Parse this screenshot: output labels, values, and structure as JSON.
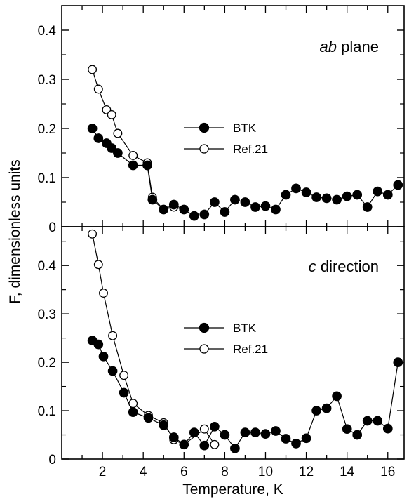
{
  "chart_data": [
    {
      "type": "scatter",
      "title_italic": "ab",
      "title_rest": "plane",
      "xlabel": "Temperature, K",
      "ylabel": "F, dimensionless units",
      "xlim": [
        0,
        16.8
      ],
      "ylim": [
        0,
        0.45
      ],
      "xticks": [
        "2",
        "4",
        "6",
        "8",
        "10",
        "12",
        "14",
        "16"
      ],
      "yticks": [
        "0",
        "0.1",
        "0.2",
        "0.3",
        "0.4"
      ],
      "legend": [
        "BTK",
        "Ref.21"
      ],
      "series": [
        {
          "name": "BTK",
          "marker": "filled-circle",
          "x": [
            1.5,
            1.8,
            2.2,
            2.45,
            2.75,
            3.5,
            4.2,
            4.45,
            5.0,
            5.5,
            6.0,
            6.5,
            7.0,
            7.5,
            8.0,
            8.5,
            9.0,
            9.5,
            10.0,
            10.5,
            11.0,
            11.5,
            12.0,
            12.5,
            13.0,
            13.5,
            14.0,
            14.5,
            15.0,
            15.5,
            16.0,
            16.5
          ],
          "y": [
            0.2,
            0.18,
            0.17,
            0.16,
            0.15,
            0.125,
            0.125,
            0.055,
            0.035,
            0.045,
            0.035,
            0.022,
            0.025,
            0.05,
            0.03,
            0.055,
            0.05,
            0.04,
            0.042,
            0.035,
            0.065,
            0.078,
            0.07,
            0.06,
            0.058,
            0.055,
            0.062,
            0.065,
            0.04,
            0.072,
            0.065,
            0.085
          ]
        },
        {
          "name": "Ref.21",
          "marker": "open-circle",
          "x": [
            1.5,
            1.8,
            2.2,
            2.45,
            2.75,
            3.5,
            4.2,
            4.45,
            5.0,
            5.5,
            6.0
          ],
          "y": [
            0.32,
            0.28,
            0.238,
            0.228,
            0.19,
            0.145,
            0.13,
            0.06,
            0.035,
            0.04,
            0.035
          ]
        }
      ]
    },
    {
      "type": "scatter",
      "title_italic": "c",
      "title_rest": "direction",
      "xlabel": "Temperature, K",
      "ylabel": "F, dimensionless units",
      "xlim": [
        0,
        16.8
      ],
      "ylim": [
        0,
        0.48
      ],
      "xticks": [
        "2",
        "4",
        "6",
        "8",
        "10",
        "12",
        "14",
        "16"
      ],
      "yticks": [
        "0",
        "0.1",
        "0.2",
        "0.3",
        "0.4"
      ],
      "legend": [
        "BTK",
        "Ref.21"
      ],
      "series": [
        {
          "name": "BTK",
          "marker": "filled-circle",
          "x": [
            1.5,
            1.8,
            2.05,
            2.5,
            3.05,
            3.5,
            4.25,
            5.0,
            5.5,
            6.0,
            6.5,
            7.0,
            7.5,
            8.0,
            8.5,
            9.0,
            9.5,
            10.0,
            10.5,
            11.0,
            11.5,
            12.0,
            12.5,
            13.0,
            13.5,
            14.0,
            14.5,
            15.0,
            15.5,
            16.0,
            16.5
          ],
          "y": [
            0.245,
            0.237,
            0.212,
            0.182,
            0.137,
            0.097,
            0.085,
            0.07,
            0.045,
            0.03,
            0.055,
            0.028,
            0.067,
            0.05,
            0.022,
            0.055,
            0.055,
            0.052,
            0.058,
            0.042,
            0.032,
            0.043,
            0.1,
            0.105,
            0.13,
            0.062,
            0.05,
            0.079,
            0.079,
            0.063,
            0.2
          ]
        },
        {
          "name": "Ref.21",
          "marker": "open-circle",
          "x": [
            1.5,
            1.8,
            2.05,
            2.5,
            3.05,
            3.5,
            4.25,
            5.0,
            5.5,
            6.0,
            7.0,
            7.5
          ],
          "y": [
            0.465,
            0.402,
            0.343,
            0.255,
            0.173,
            0.115,
            0.09,
            0.075,
            0.04,
            0.03,
            0.062,
            0.03
          ]
        }
      ]
    }
  ]
}
